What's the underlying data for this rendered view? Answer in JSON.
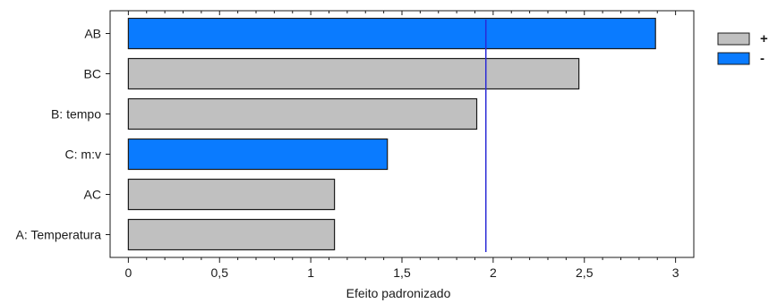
{
  "chart_data": {
    "type": "bar",
    "orientation": "horizontal",
    "title": "",
    "xlabel": "Efeito padronizado",
    "ylabel": "",
    "xlim": [
      -0.1,
      3.1
    ],
    "xticks": [
      0,
      0.5,
      1,
      1.5,
      2,
      2.5,
      3
    ],
    "xtick_labels": [
      "0",
      "0,5",
      "1",
      "1,5",
      "2",
      "2,5",
      "3"
    ],
    "categories": [
      "AB",
      "BC",
      "B: tempo",
      "C: m:v",
      "AC",
      "A: Temperatura"
    ],
    "values": [
      2.89,
      2.47,
      1.91,
      1.42,
      1.13,
      1.13
    ],
    "signs": [
      "-",
      "+",
      "+",
      "-",
      "+",
      "+"
    ],
    "reference_line": 1.96,
    "grid": false,
    "legend_position": "right",
    "legend": [
      {
        "label": "+",
        "color": "#c0c0c0"
      },
      {
        "label": "-",
        "color": "#0a7bff"
      }
    ],
    "colors": {
      "positive": "#c0c0c0",
      "negative": "#0a7bff",
      "reference": "#2b2bd6",
      "outline": "#1a1a1a"
    }
  }
}
